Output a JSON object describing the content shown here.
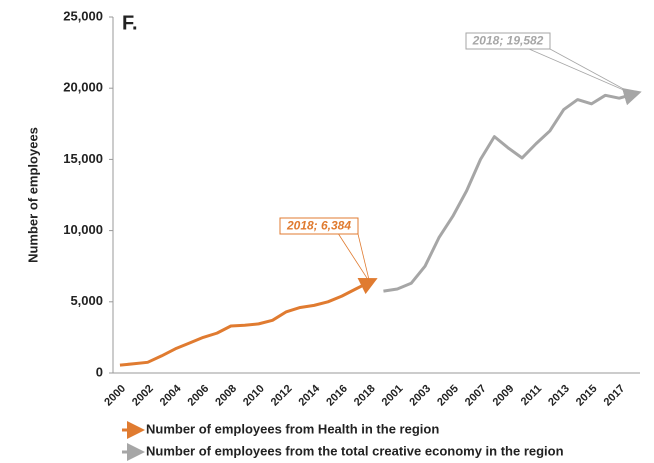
{
  "chart_data": {
    "type": "line",
    "title": "F.",
    "y_label": "Number of employees",
    "categories": [
      "2000",
      null,
      "2002",
      null,
      "2004",
      null,
      "2006",
      null,
      "2008",
      null,
      "2010",
      null,
      "2012",
      null,
      "2014",
      null,
      "2016",
      null,
      "2018",
      null,
      "2001",
      null,
      "2003",
      null,
      "2005",
      null,
      "2007",
      null,
      "2009",
      null,
      "2011",
      null,
      "2013",
      null,
      "2015",
      null,
      "2017",
      null
    ],
    "series": [
      {
        "name": "Number of employees from Health in the region",
        "color": "#e07b30",
        "values": [
          550,
          650,
          750,
          1200,
          1700,
          2100,
          2500,
          2800,
          3300,
          3350,
          3450,
          3700,
          4300,
          4600,
          4750,
          5000,
          5400,
          5900,
          6384,
          null,
          null,
          null,
          null,
          null,
          null,
          null,
          null,
          null,
          null,
          null,
          null,
          null,
          null,
          null,
          null,
          null,
          null,
          null
        ]
      },
      {
        "name": "Number of employees from the total creative economy in the region",
        "color": "#a6a6a6",
        "values": [
          null,
          null,
          null,
          null,
          null,
          null,
          null,
          null,
          null,
          null,
          null,
          null,
          null,
          null,
          null,
          null,
          null,
          null,
          null,
          5750,
          5900,
          6300,
          7500,
          9500,
          11000,
          12800,
          15000,
          16600,
          15800,
          15100,
          16100,
          17000,
          18500,
          19200,
          18900,
          19500,
          19300,
          19582
        ]
      }
    ],
    "annotations": [
      "2018; 6,384",
      "2018; 19,582"
    ],
    "ylim": [
      0,
      25000
    ],
    "yticks": [
      0,
      {
        "value": 5000,
        "label": "5,000"
      },
      {
        "value": 10000,
        "label": "10,000"
      },
      {
        "value": 15000,
        "label": "15,000"
      },
      {
        "value": 20000,
        "label": "20,000"
      },
      {
        "value": 25000,
        "label": "25,000"
      }
    ]
  }
}
